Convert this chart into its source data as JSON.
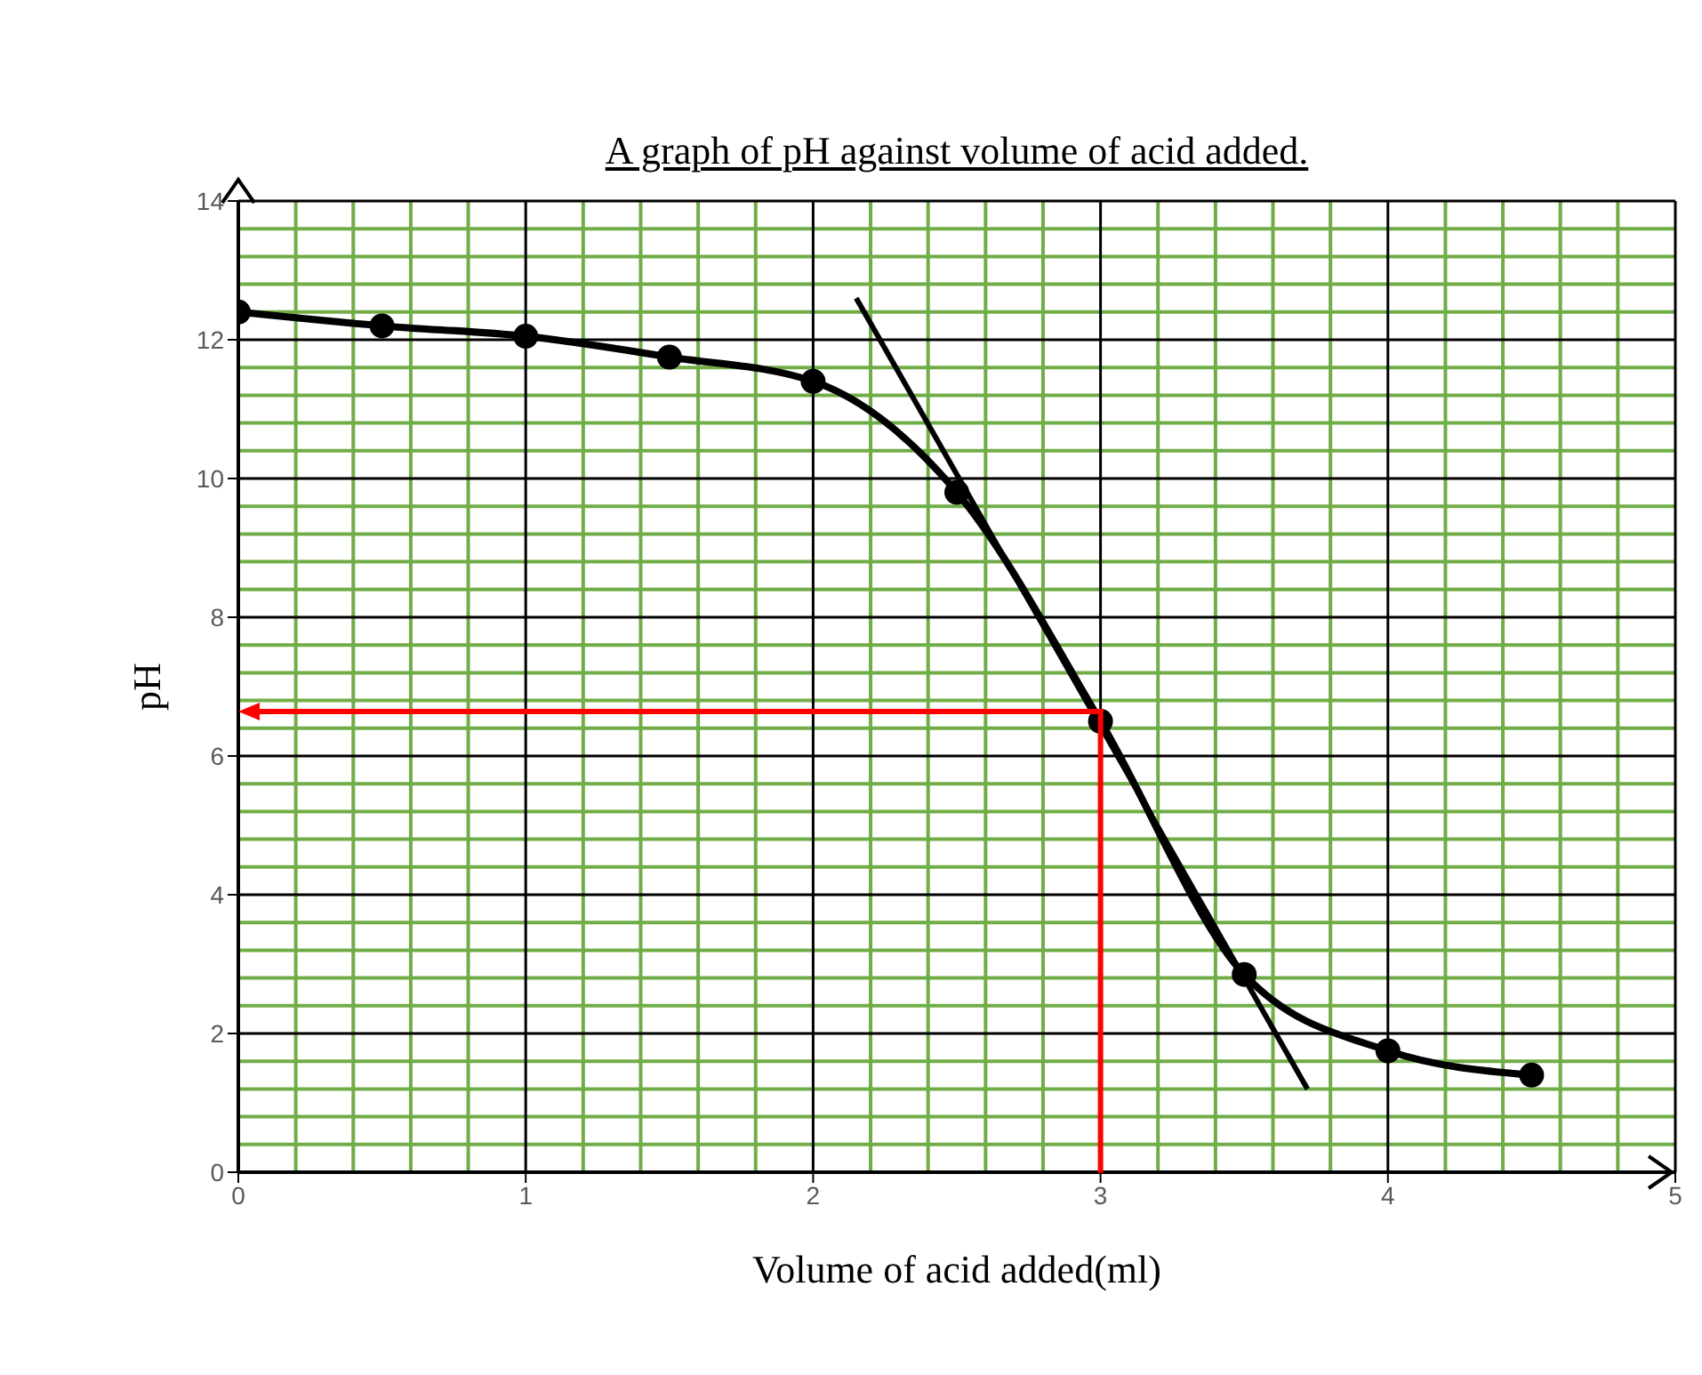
{
  "chart_data": {
    "type": "line",
    "title": "A graph of pH against volume of acid added.",
    "xlabel": "Volume of acid added(ml)",
    "ylabel": "pH",
    "xlim": [
      0,
      5
    ],
    "xticks": [
      0,
      {
        "value": 0.2,
        "label": null
      },
      {
        "value": 0.4,
        "label": null
      },
      {
        "value": 0.6,
        "label": null
      },
      {
        "value": 0.8,
        "label": null
      },
      1,
      {
        "value": 1.2,
        "label": null
      },
      {
        "value": 1.4,
        "label": null
      },
      {
        "value": 1.6,
        "label": null
      },
      {
        "value": 1.8,
        "label": null
      },
      2,
      {
        "value": 2.2,
        "label": null
      },
      {
        "value": 2.4,
        "label": null
      },
      {
        "value": 2.6,
        "label": null
      },
      {
        "value": 2.8,
        "label": null
      },
      3,
      {
        "value": 3.2,
        "label": null
      },
      {
        "value": 3.4,
        "label": null
      },
      {
        "value": 3.6,
        "label": null
      },
      {
        "value": 3.8,
        "label": null
      },
      4,
      {
        "value": 4.2,
        "label": null
      },
      {
        "value": 4.4,
        "label": null
      },
      {
        "value": 4.6,
        "label": null
      },
      {
        "value": 4.8,
        "label": null
      },
      5
    ],
    "ylim": [
      0,
      14
    ],
    "yticks": [
      0,
      {
        "value": 0.4,
        "label": null
      },
      {
        "value": 0.8,
        "label": null
      },
      {
        "value": 1.2,
        "label": null
      },
      {
        "value": 1.6,
        "label": null
      },
      2,
      {
        "value": 2.4,
        "label": null
      },
      {
        "value": 2.8,
        "label": null
      },
      {
        "value": 3.2,
        "label": null
      },
      {
        "value": 3.6,
        "label": null
      },
      4,
      {
        "value": 4.4,
        "label": null
      },
      {
        "value": 4.8,
        "label": null
      },
      {
        "value": 5.2,
        "label": null
      },
      {
        "value": 5.6,
        "label": null
      },
      6,
      {
        "value": 6.4,
        "label": null
      },
      {
        "value": 6.8,
        "label": null
      },
      {
        "value": 7.2,
        "label": null
      },
      {
        "value": 7.6,
        "label": null
      },
      8,
      {
        "value": 8.4,
        "label": null
      },
      {
        "value": 8.8,
        "label": null
      },
      {
        "value": 9.2,
        "label": null
      },
      {
        "value": 9.6,
        "label": null
      },
      10,
      {
        "value": 10.4,
        "label": null
      },
      {
        "value": 10.8,
        "label": null
      },
      {
        "value": 11.2,
        "label": null
      },
      {
        "value": 11.6,
        "label": null
      },
      12,
      {
        "value": 12.4,
        "label": null
      },
      {
        "value": 12.8,
        "label": null
      },
      {
        "value": 13.2,
        "label": null
      },
      {
        "value": 13.6,
        "label": null
      },
      14
    ],
    "grid": true,
    "series": [
      {
        "color": "#000000",
        "marker": "circle",
        "x": [
          0,
          0.5,
          1,
          1.5,
          2,
          2.5,
          3,
          3.5,
          4,
          4.5
        ],
        "values": [
          12.4,
          12.2,
          12.05,
          11.75,
          11.4,
          9.8,
          6.5,
          2.85,
          1.75,
          1.4
        ]
      },
      {
        "color": "#000000",
        "marker": "none",
        "x": [
          2.15,
          3.72
        ],
        "values": [
          12.6,
          1.2
        ]
      }
    ]
  }
}
